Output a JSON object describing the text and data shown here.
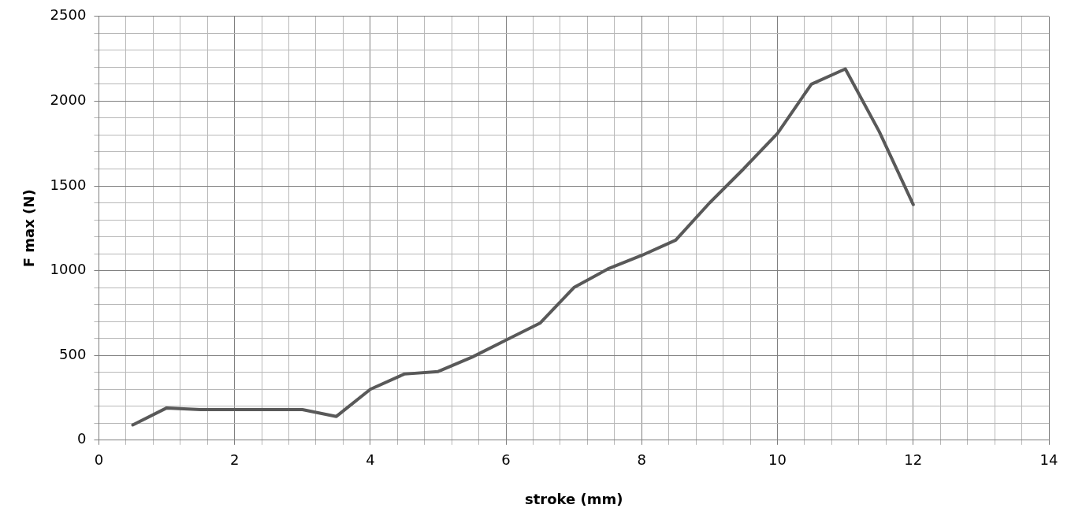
{
  "chart_data": {
    "type": "line",
    "xlabel": "stroke (mm)",
    "ylabel": "F max (N)",
    "x": [
      0.5,
      1,
      1.5,
      2,
      2.5,
      3,
      3.5,
      4,
      4.5,
      5,
      5.5,
      6,
      6.5,
      7,
      7.5,
      8,
      8.5,
      9,
      9.5,
      10,
      10.5,
      11,
      11.5,
      12
    ],
    "series": [
      {
        "color": "#595959",
        "values": [
          90,
          190,
          180,
          180,
          180,
          180,
          140,
          300,
          390,
          405,
          490,
          590,
          690,
          900,
          1010,
          1090,
          1180,
          1400,
          1600,
          1810,
          2100,
          2190,
          1820,
          1390
        ]
      }
    ],
    "xlim": [
      0,
      14
    ],
    "xticks": [
      0,
      {
        "value": 0.4,
        "label": null
      },
      {
        "value": 0.8,
        "label": null
      },
      {
        "value": 1.2,
        "label": null
      },
      {
        "value": 1.6,
        "label": null
      },
      2,
      {
        "value": 2.4,
        "label": null
      },
      {
        "value": 2.8,
        "label": null
      },
      {
        "value": 3.2,
        "label": null
      },
      {
        "value": 3.6,
        "label": null
      },
      4,
      {
        "value": 4.4,
        "label": null
      },
      {
        "value": 4.8,
        "label": null
      },
      {
        "value": 5.2,
        "label": null
      },
      {
        "value": 5.6,
        "label": null
      },
      6,
      {
        "value": 6.4,
        "label": null
      },
      {
        "value": 6.8,
        "label": null
      },
      {
        "value": 7.2,
        "label": null
      },
      {
        "value": 7.6,
        "label": null
      },
      8,
      {
        "value": 8.4,
        "label": null
      },
      {
        "value": 8.8,
        "label": null
      },
      {
        "value": 9.2,
        "label": null
      },
      {
        "value": 9.6,
        "label": null
      },
      10,
      {
        "value": 10.4,
        "label": null
      },
      {
        "value": 10.8,
        "label": null
      },
      {
        "value": 11.2,
        "label": null
      },
      {
        "value": 11.6,
        "label": null
      },
      12,
      {
        "value": 12.4,
        "label": null
      },
      {
        "value": 12.8,
        "label": null
      },
      {
        "value": 13.2,
        "label": null
      },
      {
        "value": 13.6,
        "label": null
      },
      14
    ],
    "ylim": [
      0,
      2500
    ],
    "yticks": [
      0,
      {
        "value": 100,
        "label": null
      },
      {
        "value": 200,
        "label": null
      },
      {
        "value": 300,
        "label": null
      },
      {
        "value": 400,
        "label": null
      },
      500,
      {
        "value": 600,
        "label": null
      },
      {
        "value": 700,
        "label": null
      },
      {
        "value": 800,
        "label": null
      },
      {
        "value": 900,
        "label": null
      },
      1000,
      {
        "value": 1100,
        "label": null
      },
      {
        "value": 1200,
        "label": null
      },
      {
        "value": 1300,
        "label": null
      },
      {
        "value": 1400,
        "label": null
      },
      1500,
      {
        "value": 1600,
        "label": null
      },
      {
        "value": 1700,
        "label": null
      },
      {
        "value": 1800,
        "label": null
      },
      {
        "value": 1900,
        "label": null
      },
      2000,
      {
        "value": 2100,
        "label": null
      },
      {
        "value": 2200,
        "label": null
      },
      {
        "value": 2300,
        "label": null
      },
      {
        "value": 2400,
        "label": null
      },
      2500
    ],
    "grid": true,
    "marker": "none",
    "line_style": "solid"
  }
}
